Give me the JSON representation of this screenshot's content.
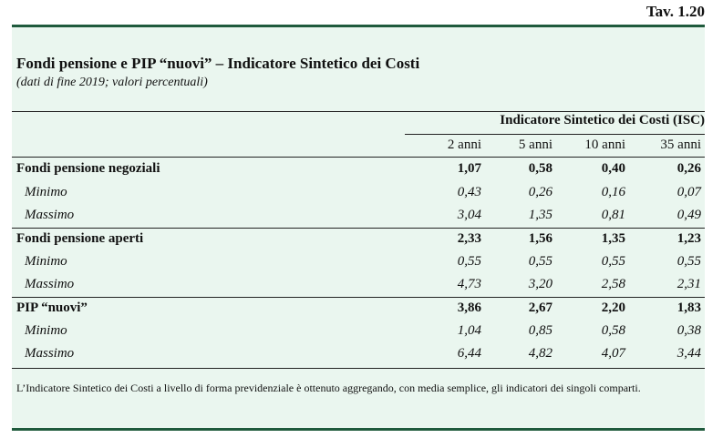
{
  "table_number": "Tav. 1.20",
  "title": "Fondi pensione e PIP “nuovi” – Indicatore Sintetico dei Costi",
  "subtitle": "(dati di fine 2019; valori percentuali)",
  "group_header": "Indicatore Sintetico dei Costi (ISC)",
  "columns": [
    "2 anni",
    "5 anni",
    "10 anni",
    "35 anni"
  ],
  "rows": [
    {
      "label": "Fondi pensione negoziali",
      "values": [
        "1,07",
        "0,58",
        "0,40",
        "0,26"
      ]
    },
    {
      "label": "Minimo",
      "values": [
        "0,43",
        "0,26",
        "0,16",
        "0,07"
      ]
    },
    {
      "label": "Massimo",
      "values": [
        "3,04",
        "1,35",
        "0,81",
        "0,49"
      ]
    },
    {
      "label": "Fondi pensione aperti",
      "values": [
        "2,33",
        "1,56",
        "1,35",
        "1,23"
      ]
    },
    {
      "label": "Minimo",
      "values": [
        "0,55",
        "0,55",
        "0,55",
        "0,55"
      ]
    },
    {
      "label": "Massimo",
      "values": [
        "4,73",
        "3,20",
        "2,58",
        "2,31"
      ]
    },
    {
      "label": "PIP “nuovi”",
      "values": [
        "3,86",
        "2,67",
        "2,20",
        "1,83"
      ]
    },
    {
      "label": "Minimo",
      "values": [
        "1,04",
        "0,85",
        "0,58",
        "0,38"
      ]
    },
    {
      "label": "Massimo",
      "values": [
        "6,44",
        "4,82",
        "4,07",
        "3,44"
      ]
    }
  ],
  "note": "L’Indicatore Sintetico dei Costi a livello di forma previdenziale è ottenuto aggregando, con media semplice, gli indicatori dei singoli comparti."
}
